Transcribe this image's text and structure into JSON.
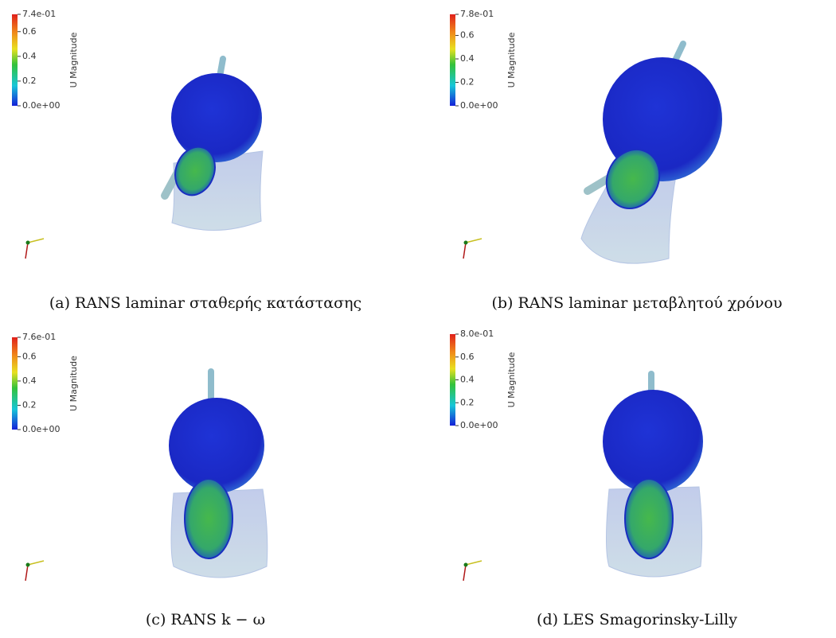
{
  "panels": [
    {
      "colorbar": {
        "title": "U Magnitude",
        "ticks": [
          {
            "value": 0.74,
            "label": "7.4e-01"
          },
          0.6,
          0.4,
          0.2,
          {
            "value": 0,
            "label": "0.0e+00"
          }
        ]
      },
      "caption": "(a) RANS laminar σταθερής κατάστασης"
    },
    {
      "colorbar": {
        "title": "U Magnitude",
        "ticks": [
          {
            "value": 0.78,
            "label": "7.8e-01"
          },
          0.6,
          0.4,
          0.2,
          {
            "value": 0,
            "label": "0.0e+00"
          }
        ]
      },
      "caption": "(b) RANS laminar μεταβλητού χρόνου"
    },
    {
      "colorbar": {
        "title": "U Magnitude",
        "ticks": [
          {
            "value": 0.76,
            "label": "7.6e-01"
          },
          0.6,
          0.4,
          0.2,
          {
            "value": 0,
            "label": "0.0e+00"
          }
        ]
      },
      "caption": "(c) RANS k − ω"
    },
    {
      "colorbar": {
        "title": "U Magnitude",
        "ticks": [
          {
            "value": 0.8,
            "label": "8.0e-01"
          },
          0.6,
          0.4,
          0.2,
          {
            "value": 0,
            "label": "0.0e+00"
          }
        ]
      },
      "caption": "(d) LES Smagorinsky-Lilly"
    }
  ]
}
